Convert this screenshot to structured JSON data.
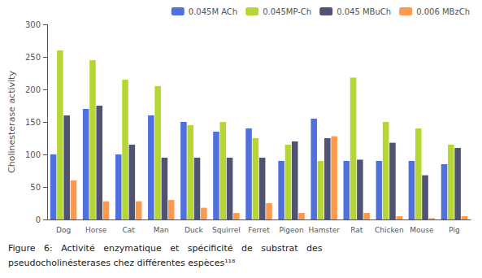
{
  "chart_data": {
    "type": "bar",
    "categories": [
      "Dog",
      "Horse",
      "Cat",
      "Man",
      "Duck",
      "Squirrel",
      "Ferret",
      "Pigeon",
      "Hamster",
      "Rat",
      "Chicken",
      "Mouse",
      "Pig"
    ],
    "series": [
      {
        "name": "0.045M ACh",
        "values": [
          100,
          170,
          100,
          160,
          150,
          135,
          140,
          90,
          155,
          90,
          90,
          90,
          85
        ]
      },
      {
        "name": "0.045MP-Ch",
        "values": [
          260,
          245,
          215,
          205,
          145,
          150,
          125,
          115,
          90,
          218,
          150,
          140,
          115
        ]
      },
      {
        "name": "0.045 MBuCh",
        "values": [
          160,
          175,
          115,
          95,
          95,
          95,
          95,
          120,
          125,
          92,
          118,
          68,
          110
        ]
      },
      {
        "name": "0.006 MBzCh",
        "values": [
          60,
          28,
          28,
          30,
          18,
          10,
          25,
          10,
          128,
          10,
          5,
          2,
          5
        ]
      }
    ],
    "ylabel": "Cholinesterase activity",
    "ylim": [
      0,
      300
    ],
    "yticks": [
      0,
      50,
      100,
      150,
      200,
      250,
      300
    ],
    "grid": false,
    "legend": "upper right",
    "annotations": [
      "Figure   6:   Activité   enzymatique   et   spécificité   de   substrat   des",
      "pseudocholinésterases chez différentes espèces¹¹⁸"
    ]
  }
}
